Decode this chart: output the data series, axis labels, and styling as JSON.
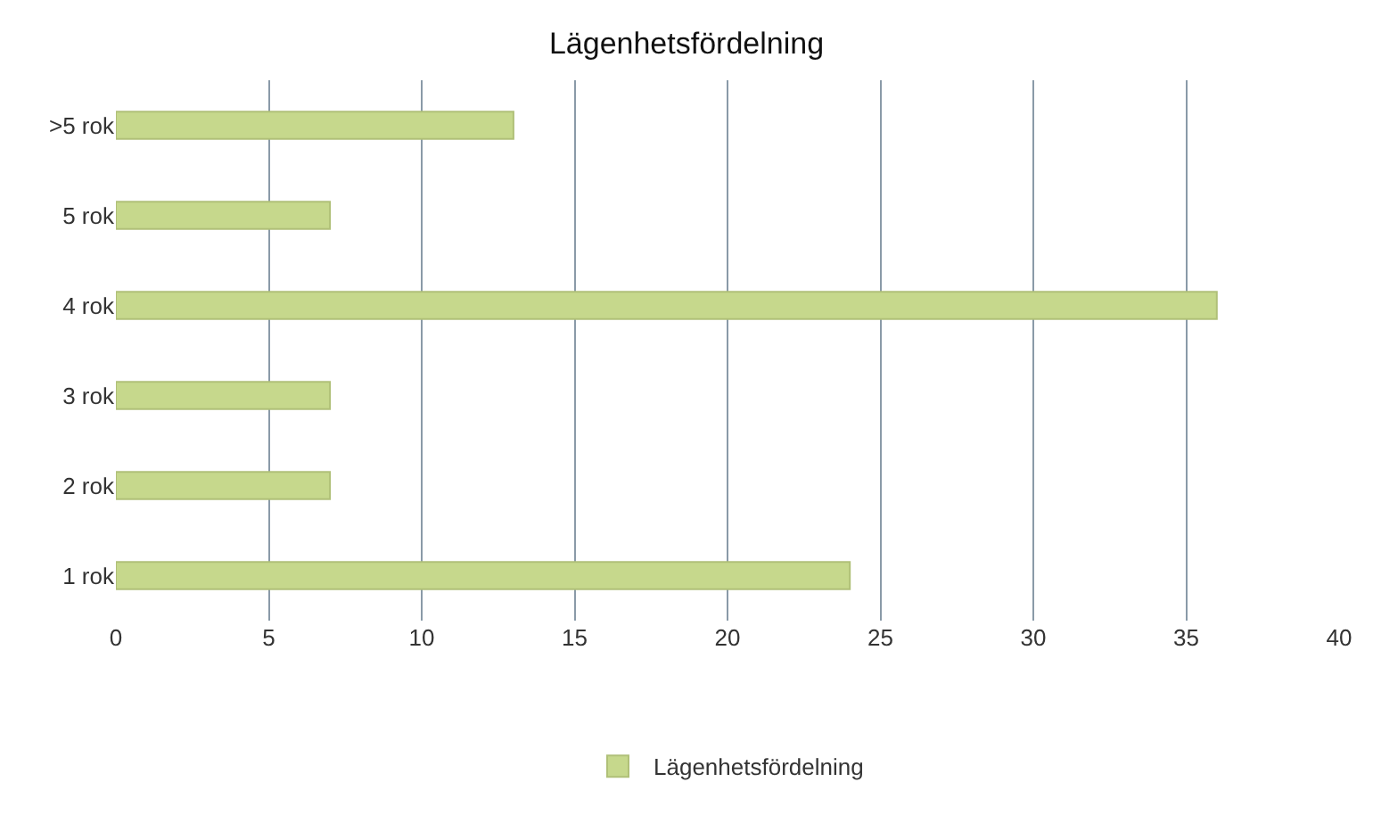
{
  "chart_data": {
    "type": "bar",
    "orientation": "horizontal",
    "title": "Lägenhetsfördelning",
    "categories": [
      ">5 rok",
      "5 rok",
      "4 rok",
      "3 rok",
      "2 rok",
      "1 rok"
    ],
    "series": [
      {
        "name": "Lägenhetsfördelning",
        "color": "#c6d88c",
        "values": [
          13,
          7,
          36,
          7,
          7,
          24
        ]
      }
    ],
    "xlim": [
      0,
      40
    ],
    "xticks": [
      0,
      5,
      10,
      15,
      20,
      25,
      30,
      35,
      40
    ],
    "grid": "x",
    "legend": "bottom"
  }
}
